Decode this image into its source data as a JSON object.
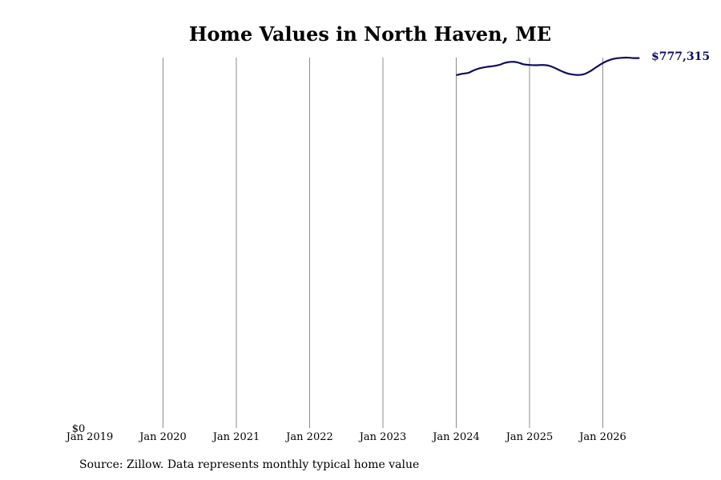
{
  "chart_data": {
    "type": "line",
    "title": "Home Values in North Haven, ME",
    "xlabel": "",
    "ylabel": "",
    "ylim": [
      0,
      777315
    ],
    "xlim": [
      "2019-01",
      "2026-07"
    ],
    "grid": "vertical lines at yearly ticks",
    "x_ticks": [
      "Jan 2019",
      "Jan 2020",
      "Jan 2021",
      "Jan 2022",
      "Jan 2023",
      "Jan 2024",
      "Jan 2025",
      "Jan 2026"
    ],
    "y_ticks": [
      "$0"
    ],
    "last_value_label": "$777,315",
    "line_color": "#0d0d5e",
    "series": [
      {
        "x": [
          "2024-01",
          "2024-02",
          "2024-03",
          "2024-04",
          "2024-05",
          "2024-06",
          "2024-07",
          "2024-08",
          "2024-09",
          "2024-10",
          "2024-11",
          "2024-12",
          "2025-01",
          "2025-02",
          "2025-03",
          "2025-04",
          "2025-05",
          "2025-06",
          "2025-07",
          "2025-08",
          "2025-09",
          "2025-10",
          "2025-11",
          "2025-12",
          "2026-01",
          "2026-02",
          "2026-03",
          "2026-04",
          "2026-05",
          "2026-06",
          "2026-07"
        ],
        "values": [
          737000,
          740000,
          742000,
          748000,
          752000,
          754500,
          756000,
          758500,
          763000,
          765000,
          764000,
          760000,
          758500,
          758000,
          758500,
          757500,
          753000,
          747000,
          741500,
          738500,
          737500,
          739500,
          746000,
          754500,
          762500,
          768500,
          772000,
          773500,
          774000,
          773000,
          773000
        ]
      }
    ]
  },
  "source_note": "Source: Zillow. Data represents monthly typical home value"
}
